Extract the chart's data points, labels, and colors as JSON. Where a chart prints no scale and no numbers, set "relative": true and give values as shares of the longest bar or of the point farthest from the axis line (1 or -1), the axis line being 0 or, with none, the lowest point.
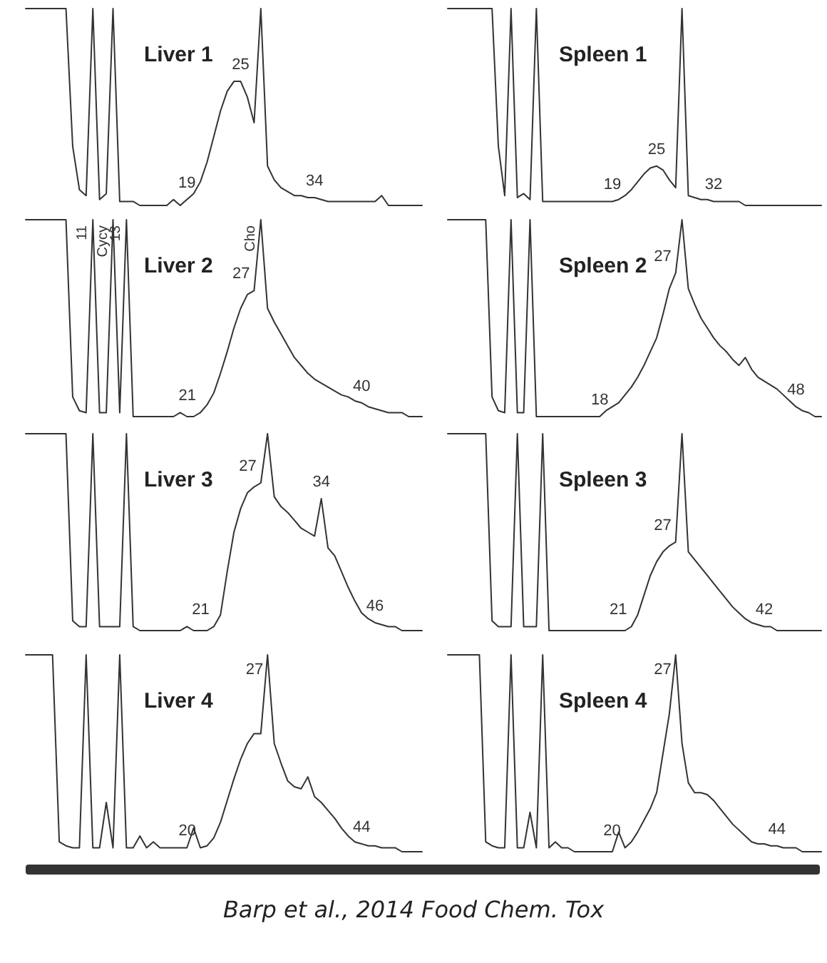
{
  "chart_data": [
    {
      "type": "line",
      "title": "Liver 1",
      "relative": true,
      "marker": "none",
      "line_style": "solid",
      "annotations": [
        "19",
        "25",
        "34"
      ],
      "categories": [
        null,
        null,
        null,
        null,
        null,
        null,
        null,
        null,
        null,
        null,
        null,
        null,
        null,
        null,
        null,
        null,
        null,
        null,
        null,
        null,
        null,
        null,
        null,
        null,
        null,
        null,
        null,
        null,
        null,
        null,
        null,
        null,
        null,
        null,
        null,
        null,
        null,
        null,
        null,
        null,
        null,
        null,
        null,
        null,
        null,
        null,
        null,
        null,
        null,
        null,
        null,
        null,
        null,
        null,
        null,
        null,
        null,
        null,
        null,
        null
      ],
      "series": [
        {
          "color": "#333333",
          "values": [
            1,
            1,
            1,
            1,
            1,
            1,
            1,
            0.3,
            0.08,
            0.05,
            1,
            0.03,
            0.06,
            1,
            0.02,
            0.02,
            0.02,
            0,
            0,
            0,
            0,
            0,
            0.03,
            0,
            0.03,
            0.06,
            0.12,
            0.22,
            0.35,
            0.48,
            0.58,
            0.63,
            0.63,
            0.55,
            0.42,
            1,
            0.2,
            0.13,
            0.09,
            0.07,
            0.05,
            0.05,
            0.04,
            0.04,
            0.03,
            0.02,
            0.02,
            0.02,
            0.02,
            0.02,
            0.02,
            0.02,
            0.02,
            0.05,
            0,
            0,
            0,
            0,
            0,
            0
          ]
        }
      ]
    },
    {
      "type": "line",
      "title": "Spleen 1",
      "relative": true,
      "marker": "none",
      "line_style": "solid",
      "annotations": [
        "19",
        "25",
        "32"
      ],
      "categories": [
        null,
        null,
        null,
        null,
        null,
        null,
        null,
        null,
        null,
        null,
        null,
        null,
        null,
        null,
        null,
        null,
        null,
        null,
        null,
        null,
        null,
        null,
        null,
        null,
        null,
        null,
        null,
        null,
        null,
        null,
        null,
        null,
        null,
        null,
        null,
        null,
        null,
        null,
        null,
        null,
        null,
        null,
        null,
        null,
        null,
        null,
        null,
        null,
        null,
        null,
        null,
        null,
        null,
        null,
        null,
        null,
        null,
        null,
        null,
        null
      ],
      "series": [
        {
          "color": "#333333",
          "values": [
            1,
            1,
            1,
            1,
            1,
            1,
            1,
            1,
            0.3,
            0.05,
            1,
            0.04,
            0.06,
            0.03,
            1,
            0.02,
            0.02,
            0.02,
            0.02,
            0.02,
            0.02,
            0.02,
            0.02,
            0.02,
            0.02,
            0.02,
            0.02,
            0.03,
            0.05,
            0.08,
            0.12,
            0.16,
            0.19,
            0.2,
            0.18,
            0.13,
            0.09,
            1,
            0.05,
            0.04,
            0.03,
            0.03,
            0.02,
            0.02,
            0.02,
            0.02,
            0.02,
            0,
            0,
            0,
            0,
            0,
            0,
            0,
            0,
            0,
            0,
            0,
            0,
            0
          ]
        }
      ]
    },
    {
      "type": "line",
      "title": "Liver 2",
      "relative": true,
      "marker": "none",
      "line_style": "solid",
      "annotations": [
        "11",
        "Cycy",
        "13",
        "21",
        "27",
        "Cho",
        "40"
      ],
      "categories": [
        null,
        null,
        null,
        null,
        null,
        null,
        null,
        null,
        null,
        null,
        null,
        null,
        null,
        null,
        null,
        null,
        null,
        null,
        null,
        null,
        null,
        null,
        null,
        null,
        null,
        null,
        null,
        null,
        null,
        null,
        null,
        null,
        null,
        null,
        null,
        null,
        null,
        null,
        null,
        null,
        null,
        null,
        null,
        null,
        null,
        null,
        null,
        null,
        null,
        null,
        null,
        null,
        null,
        null,
        null,
        null,
        null,
        null,
        null,
        null
      ],
      "series": [
        {
          "color": "#333333",
          "values": [
            1,
            1,
            1,
            1,
            1,
            1,
            1,
            0.1,
            0.03,
            0.02,
            1,
            0.02,
            0.02,
            1,
            0.02,
            1,
            0,
            0,
            0,
            0,
            0,
            0,
            0,
            0.02,
            0,
            0,
            0.02,
            0.06,
            0.12,
            0.22,
            0.33,
            0.45,
            0.55,
            0.62,
            0.64,
            1,
            0.55,
            0.48,
            0.42,
            0.36,
            0.3,
            0.26,
            0.22,
            0.19,
            0.17,
            0.15,
            0.13,
            0.11,
            0.1,
            0.08,
            0.07,
            0.05,
            0.04,
            0.03,
            0.02,
            0.02,
            0.02,
            0,
            0,
            0
          ]
        }
      ]
    },
    {
      "type": "line",
      "title": "Spleen 2",
      "relative": true,
      "marker": "none",
      "line_style": "solid",
      "annotations": [
        "18",
        "27",
        "48"
      ],
      "categories": [
        null,
        null,
        null,
        null,
        null,
        null,
        null,
        null,
        null,
        null,
        null,
        null,
        null,
        null,
        null,
        null,
        null,
        null,
        null,
        null,
        null,
        null,
        null,
        null,
        null,
        null,
        null,
        null,
        null,
        null,
        null,
        null,
        null,
        null,
        null,
        null,
        null,
        null,
        null,
        null,
        null,
        null,
        null,
        null,
        null,
        null,
        null,
        null,
        null,
        null,
        null,
        null,
        null,
        null,
        null,
        null,
        null,
        null,
        null,
        null
      ],
      "series": [
        {
          "color": "#333333",
          "values": [
            1,
            1,
            1,
            1,
            1,
            1,
            1,
            0.1,
            0.03,
            0.02,
            1,
            0.02,
            0.02,
            1,
            0,
            0,
            0,
            0,
            0,
            0,
            0,
            0,
            0,
            0,
            0,
            0.03,
            0.05,
            0.07,
            0.11,
            0.15,
            0.2,
            0.26,
            0.33,
            0.4,
            0.52,
            0.65,
            0.73,
            1,
            0.65,
            0.57,
            0.5,
            0.45,
            0.4,
            0.36,
            0.33,
            0.29,
            0.26,
            0.3,
            0.24,
            0.2,
            0.18,
            0.16,
            0.14,
            0.11,
            0.08,
            0.05,
            0.03,
            0.02,
            0,
            0
          ]
        }
      ]
    },
    {
      "type": "line",
      "title": "Liver 3",
      "relative": true,
      "marker": "none",
      "line_style": "solid",
      "annotations": [
        "21",
        "27",
        "34",
        "46"
      ],
      "categories": [
        null,
        null,
        null,
        null,
        null,
        null,
        null,
        null,
        null,
        null,
        null,
        null,
        null,
        null,
        null,
        null,
        null,
        null,
        null,
        null,
        null,
        null,
        null,
        null,
        null,
        null,
        null,
        null,
        null,
        null,
        null,
        null,
        null,
        null,
        null,
        null,
        null,
        null,
        null,
        null,
        null,
        null,
        null,
        null,
        null,
        null,
        null,
        null,
        null,
        null,
        null,
        null,
        null,
        null,
        null,
        null,
        null,
        null,
        null,
        null
      ],
      "series": [
        {
          "color": "#333333",
          "values": [
            1,
            1,
            1,
            1,
            1,
            1,
            1,
            0.05,
            0.02,
            0.02,
            1,
            0.02,
            0.02,
            0.02,
            0.02,
            1,
            0.02,
            0,
            0,
            0,
            0,
            0,
            0,
            0,
            0.02,
            0,
            0,
            0,
            0.02,
            0.08,
            0.3,
            0.5,
            0.62,
            0.7,
            0.73,
            0.75,
            1,
            0.68,
            0.63,
            0.6,
            0.56,
            0.52,
            0.5,
            0.48,
            0.67,
            0.42,
            0.38,
            0.3,
            0.22,
            0.15,
            0.09,
            0.06,
            0.04,
            0.03,
            0.02,
            0.02,
            0,
            0,
            0,
            0
          ]
        }
      ]
    },
    {
      "type": "line",
      "title": "Spleen 3",
      "relative": true,
      "marker": "none",
      "line_style": "solid",
      "annotations": [
        "21",
        "27",
        "42"
      ],
      "categories": [
        null,
        null,
        null,
        null,
        null,
        null,
        null,
        null,
        null,
        null,
        null,
        null,
        null,
        null,
        null,
        null,
        null,
        null,
        null,
        null,
        null,
        null,
        null,
        null,
        null,
        null,
        null,
        null,
        null,
        null,
        null,
        null,
        null,
        null,
        null,
        null,
        null,
        null,
        null,
        null,
        null,
        null,
        null,
        null,
        null,
        null,
        null,
        null,
        null,
        null,
        null,
        null,
        null,
        null,
        null,
        null,
        null,
        null,
        null,
        null
      ],
      "series": [
        {
          "color": "#333333",
          "values": [
            1,
            1,
            1,
            1,
            1,
            1,
            1,
            0.05,
            0.02,
            0.02,
            0.02,
            1,
            0.02,
            0.02,
            0.02,
            1,
            0,
            0,
            0,
            0,
            0,
            0,
            0,
            0,
            0,
            0,
            0,
            0,
            0,
            0.02,
            0.08,
            0.18,
            0.28,
            0.35,
            0.4,
            0.43,
            0.45,
            1,
            0.4,
            0.36,
            0.32,
            0.28,
            0.24,
            0.2,
            0.16,
            0.12,
            0.09,
            0.06,
            0.04,
            0.03,
            0.02,
            0.02,
            0,
            0,
            0,
            0,
            0,
            0,
            0,
            0
          ]
        }
      ]
    },
    {
      "type": "line",
      "title": "Liver 4",
      "relative": true,
      "marker": "none",
      "line_style": "solid",
      "annotations": [
        "20",
        "27",
        "44"
      ],
      "categories": [
        null,
        null,
        null,
        null,
        null,
        null,
        null,
        null,
        null,
        null,
        null,
        null,
        null,
        null,
        null,
        null,
        null,
        null,
        null,
        null,
        null,
        null,
        null,
        null,
        null,
        null,
        null,
        null,
        null,
        null,
        null,
        null,
        null,
        null,
        null,
        null,
        null,
        null,
        null,
        null,
        null,
        null,
        null,
        null,
        null,
        null,
        null,
        null,
        null,
        null,
        null,
        null,
        null,
        null,
        null,
        null,
        null,
        null,
        null,
        null
      ],
      "series": [
        {
          "color": "#333333",
          "values": [
            1,
            1,
            1,
            1,
            1,
            0.05,
            0.03,
            0.02,
            0.02,
            1,
            0.02,
            0.02,
            0.25,
            0.02,
            1,
            0.02,
            0.02,
            0.08,
            0.02,
            0.05,
            0.02,
            0.02,
            0.02,
            0.02,
            0.02,
            0.12,
            0.02,
            0.03,
            0.07,
            0.15,
            0.26,
            0.37,
            0.47,
            0.55,
            0.6,
            0.6,
            1,
            0.55,
            0.45,
            0.36,
            0.33,
            0.32,
            0.38,
            0.28,
            0.25,
            0.21,
            0.17,
            0.12,
            0.08,
            0.05,
            0.04,
            0.03,
            0.03,
            0.02,
            0.02,
            0.02,
            0,
            0,
            0,
            0
          ]
        }
      ]
    },
    {
      "type": "line",
      "title": "Spleen 4",
      "relative": true,
      "marker": "none",
      "line_style": "solid",
      "annotations": [
        "20",
        "27",
        "44",
        "Barp et al., 2014 Food Chem. Tox"
      ],
      "categories": [
        null,
        null,
        null,
        null,
        null,
        null,
        null,
        null,
        null,
        null,
        null,
        null,
        null,
        null,
        null,
        null,
        null,
        null,
        null,
        null,
        null,
        null,
        null,
        null,
        null,
        null,
        null,
        null,
        null,
        null,
        null,
        null,
        null,
        null,
        null,
        null,
        null,
        null,
        null,
        null,
        null,
        null,
        null,
        null,
        null,
        null,
        null,
        null,
        null,
        null,
        null,
        null,
        null,
        null,
        null,
        null,
        null,
        null,
        null,
        null
      ],
      "series": [
        {
          "color": "#333333",
          "values": [
            1,
            1,
            1,
            1,
            1,
            1,
            0.05,
            0.03,
            0.02,
            0.02,
            1,
            0.02,
            0.02,
            0.2,
            0.02,
            1,
            0.02,
            0.05,
            0.02,
            0.02,
            0,
            0,
            0,
            0,
            0,
            0,
            0,
            0.1,
            0.02,
            0.05,
            0.1,
            0.16,
            0.22,
            0.3,
            0.5,
            0.7,
            1,
            0.55,
            0.35,
            0.3,
            0.3,
            0.29,
            0.26,
            0.22,
            0.18,
            0.14,
            0.11,
            0.08,
            0.05,
            0.04,
            0.04,
            0.03,
            0.03,
            0.02,
            0.02,
            0.02,
            0,
            0,
            0,
            0
          ]
        }
      ]
    }
  ]
}
